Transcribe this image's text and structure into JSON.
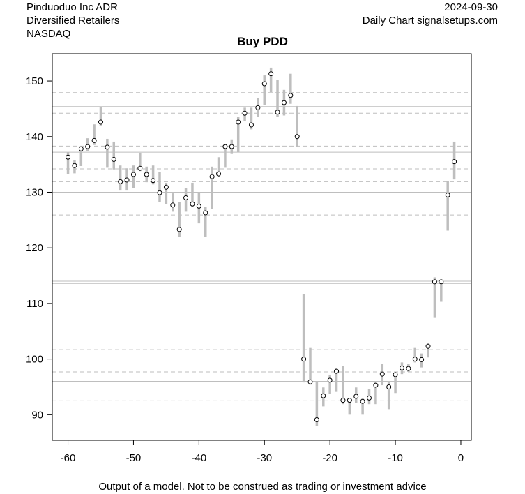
{
  "header": {
    "company": "Pinduoduo Inc ADR",
    "sector": "Diversified Retailers",
    "exchange": "NASDAQ",
    "date": "2024-09-30",
    "source": "Daily Chart signalsetups.com"
  },
  "footer": "Output of a model. Not to be construed as trading or investment advice",
  "chart_data": {
    "type": "scatter",
    "title": "Buy PDD",
    "xlabel": "",
    "ylabel": "",
    "xlim": [
      -62.4,
      1.6
    ],
    "ylim": [
      85.4,
      154.9
    ],
    "xticks": [
      -60,
      -50,
      -40,
      -30,
      -20,
      -10,
      0
    ],
    "yticks": [
      90,
      100,
      110,
      120,
      130,
      140,
      150
    ],
    "colors": {
      "bar": "#bebebe",
      "line": "#bebebe",
      "point": "#000000"
    },
    "solid_levels": [
      145.4,
      137.2,
      130.0,
      114.0,
      113.6,
      96.0
    ],
    "dashed_levels": [
      147.9,
      144.2,
      138.3,
      134.2,
      131.9,
      125.9,
      101.7,
      97.7,
      92.5
    ],
    "x": [
      -60,
      -59,
      -58,
      -57,
      -56,
      -55,
      -54,
      -53,
      -52,
      -51,
      -50,
      -49,
      -48,
      -47,
      -46,
      -45,
      -44,
      -43,
      -42,
      -41,
      -40,
      -39,
      -38,
      -37,
      -36,
      -35,
      -34,
      -33,
      -32,
      -31,
      -30,
      -29,
      -28,
      -27,
      -26,
      -25,
      -24,
      -23,
      -22,
      -21,
      -20,
      -19,
      -18,
      -17,
      -16,
      -15,
      -14,
      -13,
      -12,
      -11,
      -10,
      -9,
      -8,
      -7,
      -6,
      -5,
      -4,
      -3,
      -2,
      -1
    ],
    "close": [
      136.3,
      134.8,
      137.8,
      138.2,
      139.3,
      142.6,
      138.1,
      135.9,
      131.9,
      132.2,
      133.2,
      134.3,
      133.2,
      132.1,
      129.9,
      130.9,
      127.7,
      123.3,
      129.0,
      127.9,
      127.5,
      126.3,
      132.8,
      133.3,
      138.2,
      138.2,
      142.6,
      144.2,
      142.1,
      145.2,
      149.5,
      151.3,
      144.4,
      146.1,
      147.4,
      140.0,
      100.0,
      95.9,
      89.1,
      93.4,
      96.2,
      97.8,
      92.6,
      92.6,
      93.3,
      92.4,
      93.0,
      95.3,
      97.3,
      95.0,
      97.2,
      98.4,
      98.3,
      100.0,
      99.9,
      102.3,
      113.9,
      113.9,
      129.5,
      135.5
    ],
    "high": [
      137.2,
      135.8,
      138.3,
      139.7,
      142.2,
      145.4,
      139.6,
      139.1,
      134.8,
      134.3,
      134.8,
      137.1,
      134.6,
      134.8,
      133.7,
      131.7,
      129.8,
      128.3,
      130.8,
      131.7,
      130.0,
      127.4,
      134.6,
      136.3,
      138.2,
      139.5,
      143.5,
      145.2,
      145.2,
      146.9,
      151.0,
      152.4,
      150.2,
      148.4,
      151.3,
      145.5,
      111.7,
      102.0,
      96.0,
      94.9,
      97.2,
      98.3,
      98.8,
      93.0,
      94.9,
      92.9,
      94.6,
      95.8,
      99.2,
      95.9,
      97.5,
      99.4,
      99.2,
      102.0,
      101.0,
      102.9,
      114.7,
      114.3,
      132.0,
      139.1
    ],
    "low": [
      133.2,
      133.4,
      134.7,
      137.4,
      138.5,
      142.0,
      134.4,
      134.1,
      130.3,
      130.3,
      130.8,
      133.8,
      131.8,
      131.4,
      128.3,
      127.9,
      126.5,
      122.0,
      126.5,
      127.4,
      124.4,
      122.0,
      127.0,
      132.7,
      134.4,
      137.0,
      137.2,
      142.8,
      141.3,
      143.6,
      145.7,
      148.0,
      143.6,
      143.8,
      145.9,
      138.2,
      95.8,
      95.4,
      88.0,
      91.5,
      93.8,
      94.1,
      91.9,
      90.0,
      92.1,
      90.0,
      91.9,
      91.9,
      95.3,
      91.0,
      93.9,
      97.3,
      97.7,
      99.4,
      98.5,
      100.3,
      107.4,
      110.3,
      123.1,
      132.3
    ]
  }
}
